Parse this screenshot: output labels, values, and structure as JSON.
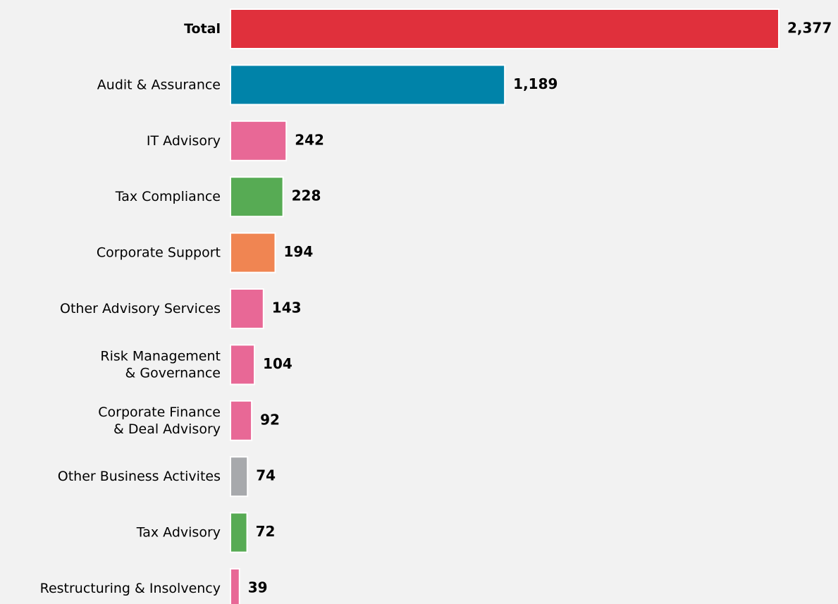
{
  "chart_data": {
    "type": "bar",
    "orientation": "horizontal",
    "categories": [
      "Total",
      "Audit & Assurance",
      "IT Advisory",
      "Tax Compliance",
      "Corporate Support",
      "Other Advisory Services",
      "Risk Management\n& Governance",
      "Corporate Finance\n& Deal Advisory",
      "Other Business Activites",
      "Tax Advisory",
      "Restructuring & Insolvency"
    ],
    "values": [
      2377,
      1189,
      242,
      228,
      194,
      143,
      104,
      92,
      74,
      72,
      39
    ],
    "value_labels": [
      "2,377",
      "1,189",
      "242",
      "228",
      "194",
      "143",
      "104",
      "92",
      "74",
      "72",
      "39"
    ],
    "colors": [
      "#e0303c",
      "#0083a9",
      "#e86896",
      "#57ab54",
      "#f08552",
      "#e86896",
      "#e86896",
      "#e86896",
      "#a7a9ac",
      "#57ab54",
      "#e86896"
    ]
  }
}
